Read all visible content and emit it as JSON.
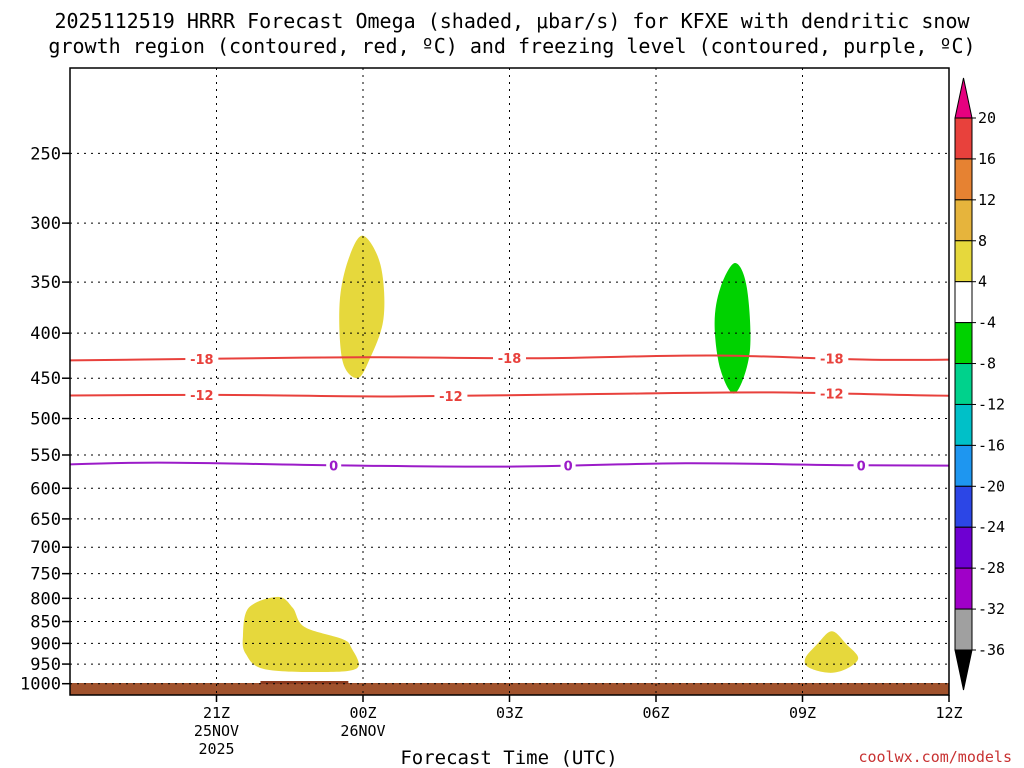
{
  "chart_data": {
    "type": "contour",
    "title_line1": "2025112519 HRRR Forecast Omega (shaded, μbar/s) for KFXE with dendritic snow",
    "title_line2": "growth region (contoured, red, ºC) and freezing level (contoured, purple, ºC)",
    "xlabel": "Forecast Time (UTC)",
    "credit": "coolwx.com/models",
    "x_range_hours": [
      -4,
      26
    ],
    "x_ticks": [
      {
        "t": 1,
        "label": "21Z",
        "sub1": "25NOV",
        "sub2": "2025"
      },
      {
        "t": 6,
        "label": "00Z",
        "sub1": "26NOV",
        "sub2": ""
      },
      {
        "t": 11,
        "label": "03Z",
        "sub1": "",
        "sub2": ""
      },
      {
        "t": 16,
        "label": "06Z",
        "sub1": "",
        "sub2": ""
      },
      {
        "t": 21,
        "label": "09Z",
        "sub1": "",
        "sub2": ""
      },
      {
        "t": 26,
        "label": "12Z",
        "sub1": "",
        "sub2": ""
      }
    ],
    "y_axis": "pressure (hPa), log scale, inverted",
    "y_range": [
      200,
      1030
    ],
    "y_ticks": [
      250,
      300,
      350,
      400,
      450,
      500,
      550,
      600,
      650,
      700,
      750,
      800,
      850,
      900,
      950,
      1000
    ],
    "contours": [
      {
        "name": "dgz-minus18",
        "color": "#e8413c",
        "label": "-18",
        "points": [
          [
            -5,
            430
          ],
          [
            0,
            428
          ],
          [
            6,
            426
          ],
          [
            12,
            427
          ],
          [
            18,
            424
          ],
          [
            24,
            429
          ],
          [
            31,
            426
          ]
        ],
        "label_at": [
          0.5,
          11,
          22
        ]
      },
      {
        "name": "dgz-minus12",
        "color": "#e8413c",
        "label": "-12",
        "points": [
          [
            -5,
            471
          ],
          [
            1,
            470
          ],
          [
            7,
            472
          ],
          [
            14,
            469
          ],
          [
            20,
            467
          ],
          [
            26,
            471
          ],
          [
            31,
            470
          ]
        ],
        "label_at": [
          0.5,
          9,
          22
        ]
      },
      {
        "name": "freezing-level-0",
        "color": "#9b1bc8",
        "label": "0",
        "points": [
          [
            -5,
            565
          ],
          [
            -1,
            561
          ],
          [
            5,
            565
          ],
          [
            11,
            567
          ],
          [
            17,
            562
          ],
          [
            23,
            565
          ],
          [
            31,
            566
          ]
        ],
        "label_at": [
          5,
          13,
          23
        ]
      }
    ],
    "shaded_regions": [
      {
        "name": "omega-plus4-upper",
        "value_bin": "4 to 8",
        "color": "#e6d83c",
        "points": [
          [
            6.0,
            310
          ],
          [
            6.6,
            335
          ],
          [
            6.7,
            385
          ],
          [
            6.2,
            430
          ],
          [
            5.8,
            450
          ],
          [
            5.3,
            430
          ],
          [
            5.2,
            370
          ],
          [
            5.5,
            330
          ]
        ]
      },
      {
        "name": "omega-minus4-upper",
        "value_bin": "-8 to -4",
        "color": "#00d200",
        "points": [
          [
            18.7,
            333
          ],
          [
            19.1,
            355
          ],
          [
            19.2,
            420
          ],
          [
            18.7,
            468
          ],
          [
            18.2,
            440
          ],
          [
            18.0,
            390
          ],
          [
            18.2,
            355
          ]
        ]
      },
      {
        "name": "omega-plus4-lower-left",
        "value_bin": "4 to 8",
        "color": "#e6d83c",
        "points": [
          [
            3.1,
            797
          ],
          [
            3.6,
            820
          ],
          [
            4.0,
            862
          ],
          [
            5.3,
            890
          ],
          [
            5.6,
            910
          ],
          [
            5.8,
            960
          ],
          [
            4.5,
            970
          ],
          [
            2.6,
            962
          ],
          [
            2.0,
            925
          ],
          [
            1.9,
            885
          ],
          [
            2.1,
            820
          ]
        ]
      },
      {
        "name": "omega-plus4-lower-right",
        "value_bin": "4 to 8",
        "color": "#e6d83c",
        "points": [
          [
            22.0,
            872
          ],
          [
            22.5,
            902
          ],
          [
            22.9,
            935
          ],
          [
            22.5,
            962
          ],
          [
            21.9,
            972
          ],
          [
            21.2,
            958
          ],
          [
            21.1,
            935
          ],
          [
            21.5,
            902
          ]
        ]
      }
    ],
    "terrain": {
      "color": "#a0522d",
      "label": "surface"
    },
    "colorbar": {
      "bins": [
        {
          "from": -40,
          "to": -36,
          "color": "#000000"
        },
        {
          "from": -36,
          "to": -32,
          "color": "#a0a0a0"
        },
        {
          "from": -32,
          "to": -28,
          "color": "#a000c8"
        },
        {
          "from": -28,
          "to": -24,
          "color": "#6e00d2"
        },
        {
          "from": -24,
          "to": -20,
          "color": "#2c46e6"
        },
        {
          "from": -20,
          "to": -16,
          "color": "#1e96f0"
        },
        {
          "from": -16,
          "to": -12,
          "color": "#00c0c8"
        },
        {
          "from": -12,
          "to": -8,
          "color": "#00d28c"
        },
        {
          "from": -8,
          "to": -4,
          "color": "#00d200"
        },
        {
          "from": -4,
          "to": 4,
          "color": "#ffffff"
        },
        {
          "from": 4,
          "to": 8,
          "color": "#e6d83c"
        },
        {
          "from": 8,
          "to": 12,
          "color": "#e6b43c"
        },
        {
          "from": 12,
          "to": 16,
          "color": "#e68232"
        },
        {
          "from": 16,
          "to": 20,
          "color": "#e8413c"
        },
        {
          "from": 20,
          "to": 24,
          "color": "#e6007f"
        }
      ],
      "labels": [
        "20",
        "16",
        "12",
        "8",
        "4",
        "-4",
        "-8",
        "-12",
        "-16",
        "-20",
        "-24",
        "-28",
        "-32",
        "-36"
      ]
    }
  }
}
